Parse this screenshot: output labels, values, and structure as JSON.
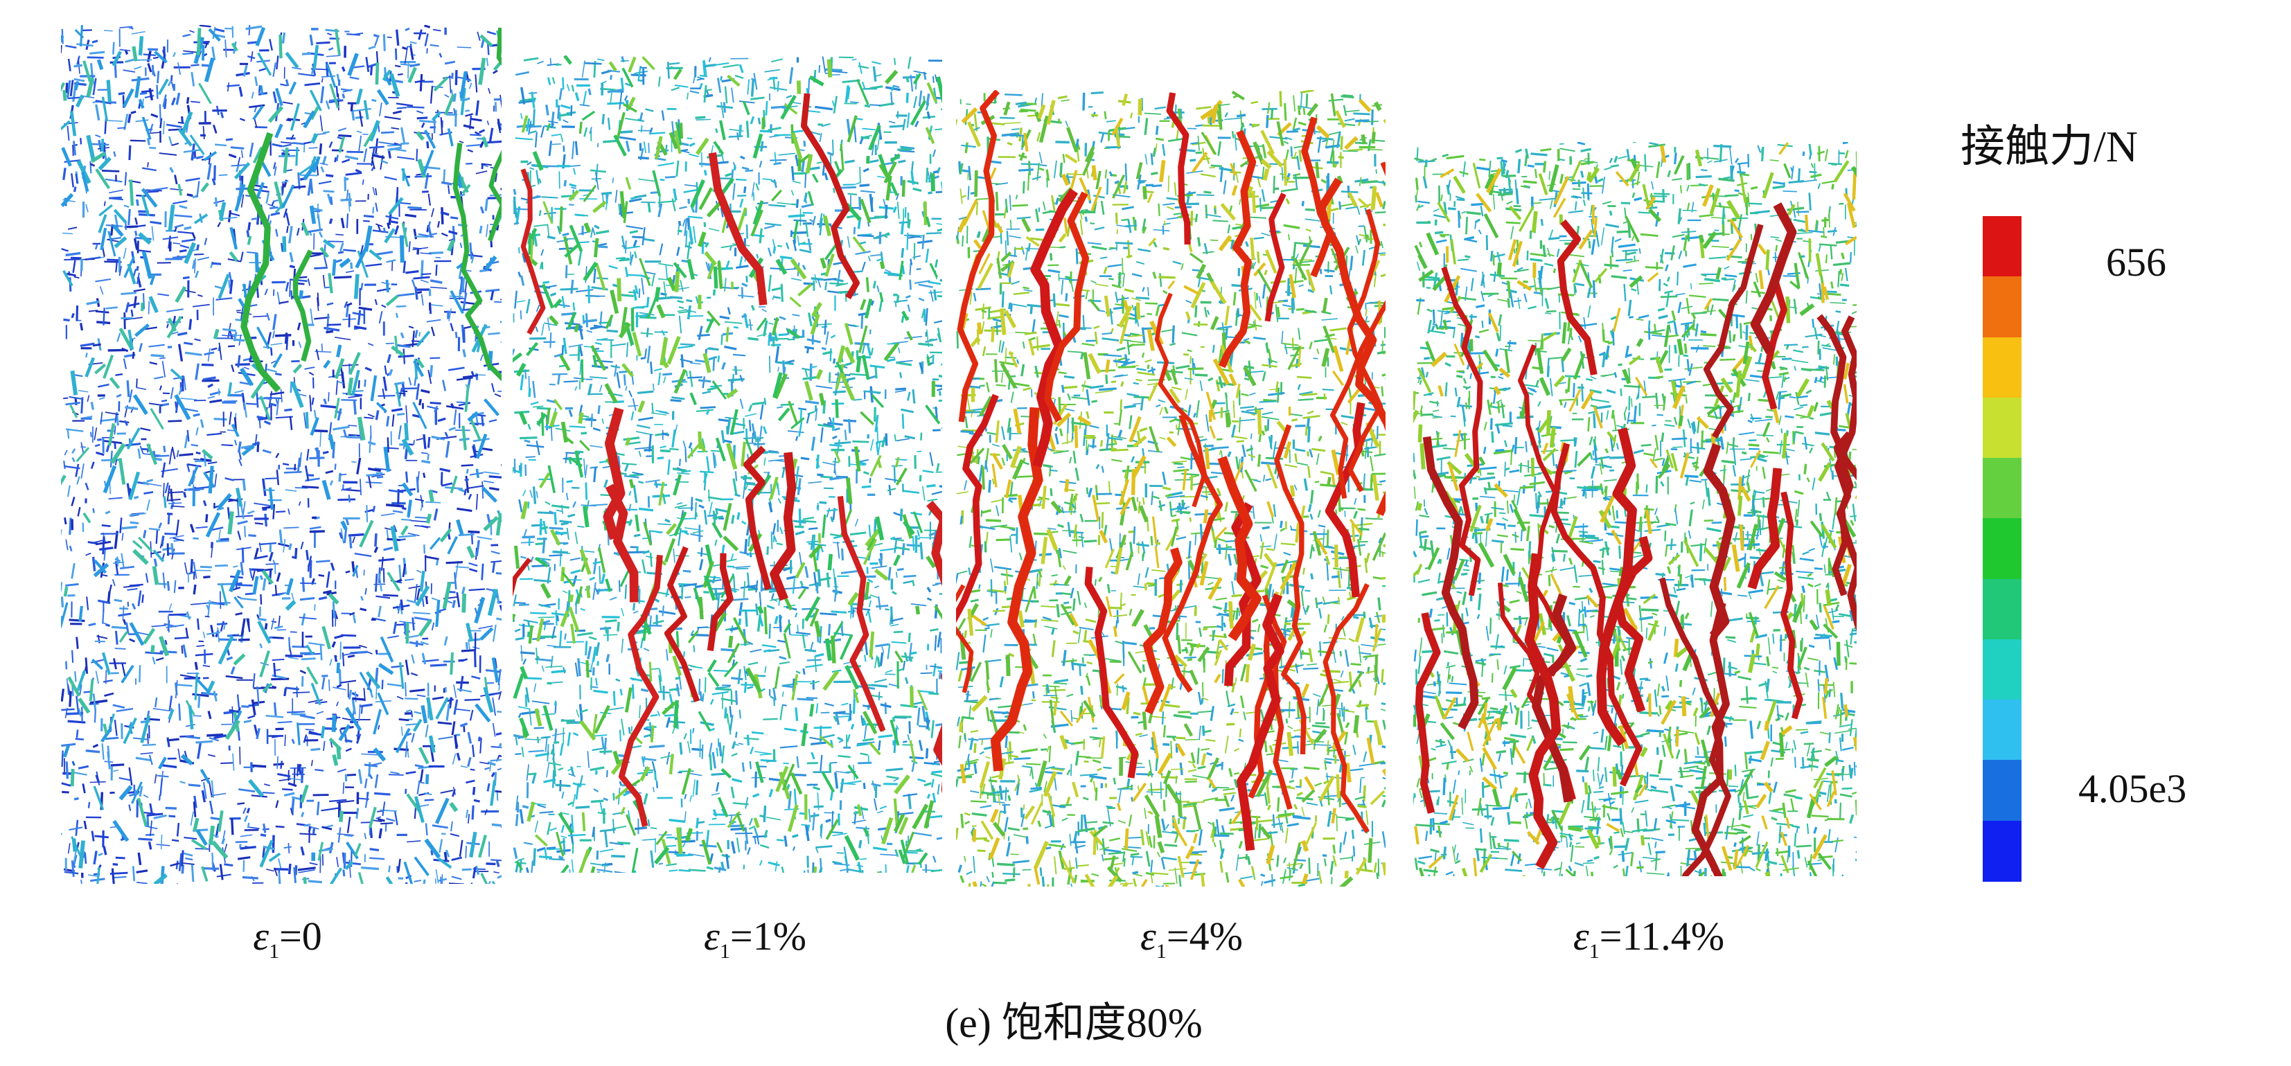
{
  "figure": {
    "caption": "(e) 饱和度80%",
    "panels": [
      {
        "strain_symbol": "ε",
        "strain_sub": "1",
        "strain_value": "=0",
        "dominant": "blue"
      },
      {
        "strain_symbol": "ε",
        "strain_sub": "1",
        "strain_value": "=1%",
        "dominant": "teal"
      },
      {
        "strain_symbol": "ε",
        "strain_sub": "1",
        "strain_value": "=4%",
        "dominant": "green-red"
      },
      {
        "strain_symbol": "ε",
        "strain_sub": "1",
        "strain_value": "=11.4%",
        "dominant": "teal-red"
      }
    ]
  },
  "colorbar": {
    "title": "接触力/N",
    "top_label": "656",
    "bottom_label": "4.05e3",
    "colors": [
      "#dd1414",
      "#f07010",
      "#f8c010",
      "#c8e030",
      "#64d040",
      "#20c830",
      "#20c878",
      "#20d0c0",
      "#30c0f0",
      "#1870e0",
      "#1020f0"
    ]
  }
}
